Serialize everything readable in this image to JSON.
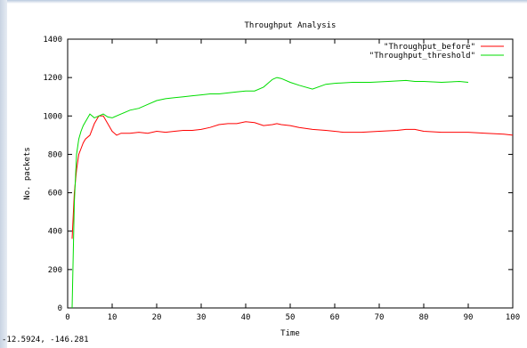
{
  "window": {
    "status_coordinates": "-12.5924, -146.281"
  },
  "chart_data": {
    "type": "line",
    "title": "Throughput Analysis",
    "xlabel": "Time",
    "ylabel": "No. packets",
    "xlim": [
      0,
      100
    ],
    "ylim": [
      0,
      1400
    ],
    "xticks": [
      0,
      10,
      20,
      30,
      40,
      50,
      60,
      70,
      80,
      90,
      100
    ],
    "yticks": [
      0,
      200,
      400,
      600,
      800,
      1000,
      1200,
      1400
    ],
    "grid": false,
    "legend_position": "top-right",
    "series": [
      {
        "name": "\"Throughput_before\"",
        "color": "#ff0000",
        "x": [
          1,
          1.5,
          2,
          2.5,
          3,
          3.5,
          4,
          5,
          6,
          7,
          8,
          9,
          10,
          11,
          12,
          14,
          16,
          18,
          20,
          22,
          24,
          26,
          28,
          30,
          32,
          34,
          36,
          38,
          40,
          42,
          44,
          46,
          47,
          48,
          50,
          52,
          55,
          58,
          62,
          66,
          70,
          74,
          76,
          78,
          80,
          84,
          88,
          90,
          94,
          98,
          100
        ],
        "y": [
          360,
          600,
          720,
          800,
          830,
          860,
          880,
          900,
          960,
          1000,
          1000,
          960,
          920,
          900,
          910,
          910,
          915,
          910,
          920,
          915,
          920,
          925,
          925,
          930,
          940,
          955,
          960,
          960,
          970,
          965,
          950,
          955,
          960,
          955,
          950,
          940,
          930,
          925,
          915,
          915,
          920,
          925,
          930,
          930,
          920,
          915,
          915,
          915,
          910,
          905,
          900
        ]
      },
      {
        "name": "\"Throughput_threshold\"",
        "color": "#00dd00",
        "x": [
          1,
          1.5,
          2,
          2.5,
          3,
          3.5,
          4,
          5,
          6,
          7,
          8,
          9,
          10,
          12,
          14,
          16,
          18,
          20,
          22,
          24,
          26,
          28,
          30,
          32,
          34,
          36,
          38,
          40,
          42,
          44,
          46,
          47,
          48,
          50,
          52,
          55,
          58,
          60,
          64,
          68,
          72,
          76,
          78,
          80,
          84,
          88,
          90
        ],
        "y": [
          0,
          550,
          800,
          880,
          920,
          950,
          970,
          1010,
          990,
          1000,
          1010,
          995,
          990,
          1010,
          1030,
          1040,
          1060,
          1080,
          1090,
          1095,
          1100,
          1105,
          1110,
          1115,
          1115,
          1120,
          1125,
          1130,
          1130,
          1150,
          1190,
          1200,
          1195,
          1175,
          1160,
          1140,
          1165,
          1170,
          1175,
          1175,
          1180,
          1185,
          1180,
          1180,
          1175,
          1180,
          1175
        ]
      }
    ]
  }
}
